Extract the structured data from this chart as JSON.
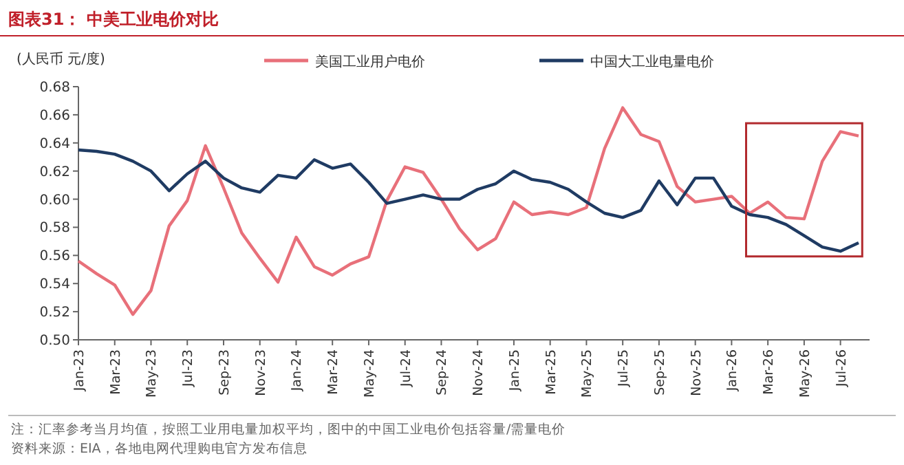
{
  "chart_data": {
    "type": "line",
    "title": "图表31：  中美工业电价对比",
    "ylabel": "(人民币 元/度)",
    "categories": [
      "Jan-23",
      null,
      "Mar-23",
      null,
      "May-23",
      null,
      "Jul-23",
      null,
      "Sep-23",
      null,
      "Nov-23",
      null,
      "Jan-24",
      null,
      "Mar-24",
      null,
      "May-24",
      null,
      "Jul-24",
      null,
      "Sep-24",
      null,
      "Nov-24",
      null,
      "Jan-25",
      null,
      "Mar-25",
      null,
      "May-25",
      null,
      "Jul-25",
      null,
      "Sep-25",
      null,
      "Nov-25",
      null,
      "Jan-26",
      null,
      "Mar-26",
      null,
      "May-26",
      null,
      "Jul-26",
      null
    ],
    "series": [
      {
        "name": "美国工业用户电价",
        "color": "#e8707a",
        "values": [
          0.556,
          0.547,
          0.539,
          0.518,
          0.535,
          0.581,
          0.599,
          0.638,
          0.608,
          0.576,
          0.558,
          0.541,
          0.573,
          0.552,
          0.546,
          0.554,
          0.559,
          0.599,
          0.623,
          0.619,
          0.6,
          0.579,
          0.564,
          0.572,
          0.598,
          0.589,
          0.591,
          0.589,
          0.594,
          0.636,
          0.665,
          0.646,
          0.641,
          0.609,
          0.598,
          0.6,
          0.602,
          0.59,
          0.598,
          0.587,
          0.586,
          0.627,
          0.648,
          0.645
        ]
      },
      {
        "name": "中国大工业电量电价",
        "color": "#1f3b63",
        "values": [
          0.635,
          0.634,
          0.632,
          0.627,
          0.62,
          0.606,
          0.618,
          0.627,
          0.615,
          0.608,
          0.605,
          0.617,
          0.615,
          0.628,
          0.622,
          0.625,
          0.612,
          0.597,
          0.6,
          0.603,
          0.6,
          0.6,
          0.607,
          0.611,
          0.62,
          0.614,
          0.612,
          0.607,
          0.598,
          0.59,
          0.587,
          0.592,
          0.613,
          0.596,
          0.615,
          0.615,
          0.595,
          0.589,
          0.587,
          0.582,
          0.574,
          0.566,
          0.563,
          0.569
        ]
      }
    ],
    "ylim": [
      0.5,
      0.68
    ],
    "yticks": [
      {
        "value": 0.5,
        "label": "0.50"
      },
      0.52,
      0.54,
      0.56,
      0.58,
      {
        "value": 0.6,
        "label": "0.60"
      },
      0.62,
      0.64,
      0.66,
      0.68
    ],
    "legend": "top",
    "annotations": [
      "注：汇率参考当月均值，按照工业用电量加权平均，图中的中国工业电价包括容量/需量电价",
      "资料来源：EIA，各地电网代理购电官方发布信息"
    ]
  }
}
